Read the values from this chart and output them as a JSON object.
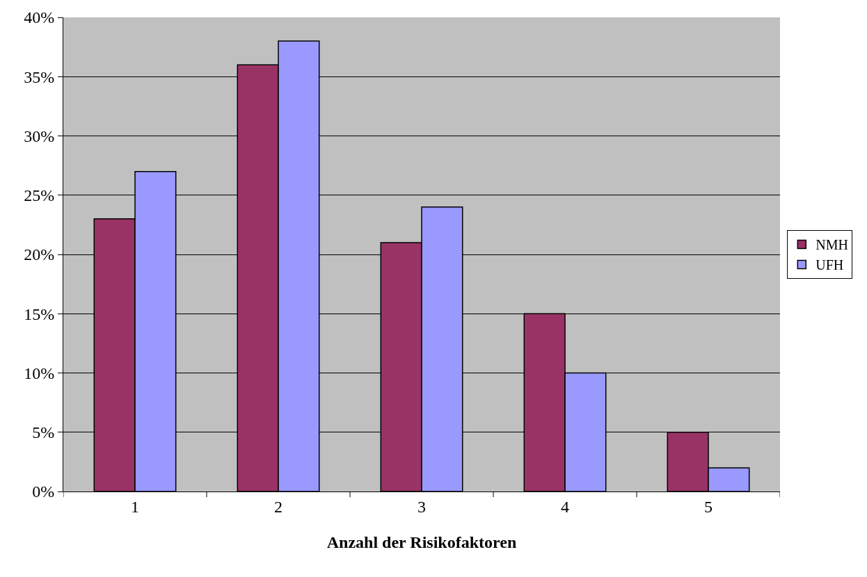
{
  "chart_data": {
    "type": "bar",
    "xlabel": "Anzahl der Risikofaktoren",
    "categories": [
      "1",
      "2",
      "3",
      "4",
      "5"
    ],
    "series": [
      {
        "name": "NMH",
        "color": "#993366",
        "values": [
          23,
          36,
          21,
          15,
          5
        ]
      },
      {
        "name": "UFH",
        "color": "#9999ff",
        "values": [
          27,
          38,
          24,
          10,
          2
        ]
      }
    ],
    "ylim": [
      0,
      40
    ],
    "yticks": [
      {
        "value": 0,
        "label": "0%"
      },
      {
        "value": 5,
        "label": "5%"
      },
      {
        "value": 10,
        "label": "10%"
      },
      {
        "value": 15,
        "label": "15%"
      },
      {
        "value": 20,
        "label": "20%"
      },
      {
        "value": 25,
        "label": "25%"
      },
      {
        "value": 30,
        "label": "30%"
      },
      {
        "value": 35,
        "label": "35%"
      },
      {
        "value": 40,
        "label": "40%"
      }
    ],
    "grid": "y",
    "legend": "right"
  }
}
